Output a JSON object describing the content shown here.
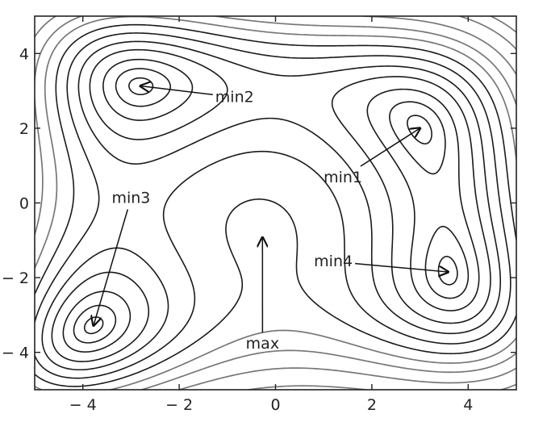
{
  "chart_data": {
    "type": "contour",
    "function": "himmelblau",
    "title": "",
    "xlabel": "",
    "ylabel": "",
    "xlim": [
      -5,
      5
    ],
    "ylim": [
      -5,
      5
    ],
    "grid": false,
    "legend": "none",
    "xticks": [
      -4,
      -2,
      0,
      2,
      4
    ],
    "yticks": [
      -4,
      -2,
      0,
      2,
      4
    ],
    "xtick_labels": [
      "− 4",
      "− 2",
      "0",
      "2",
      "4"
    ],
    "ytick_labels": [
      "− 4",
      "− 2",
      "0",
      "2",
      "4"
    ],
    "inner_levels": [
      2,
      10,
      25,
      50,
      80,
      120,
      170
    ],
    "outer_levels": [
      230,
      300,
      400,
      550,
      700
    ],
    "inner_color": "#1a1a1a",
    "outer_color": "#777777",
    "annotations": [
      {
        "text": "min1",
        "point": [
          3.0,
          2.0
        ],
        "text_pos": [
          1.4,
          0.55
        ]
      },
      {
        "text": "min2",
        "point": [
          -2.805,
          3.131
        ],
        "text_pos": [
          -0.85,
          2.7
        ]
      },
      {
        "text": "min3",
        "point": [
          -3.779,
          -3.283
        ],
        "text_pos": [
          -3.0,
          0.0
        ]
      },
      {
        "text": "min4",
        "point": [
          3.584,
          -1.848
        ],
        "text_pos": [
          1.2,
          -1.7
        ]
      },
      {
        "text": "max",
        "point": [
          -0.271,
          -0.923
        ],
        "text_pos": [
          -0.27,
          -3.9
        ]
      }
    ]
  }
}
